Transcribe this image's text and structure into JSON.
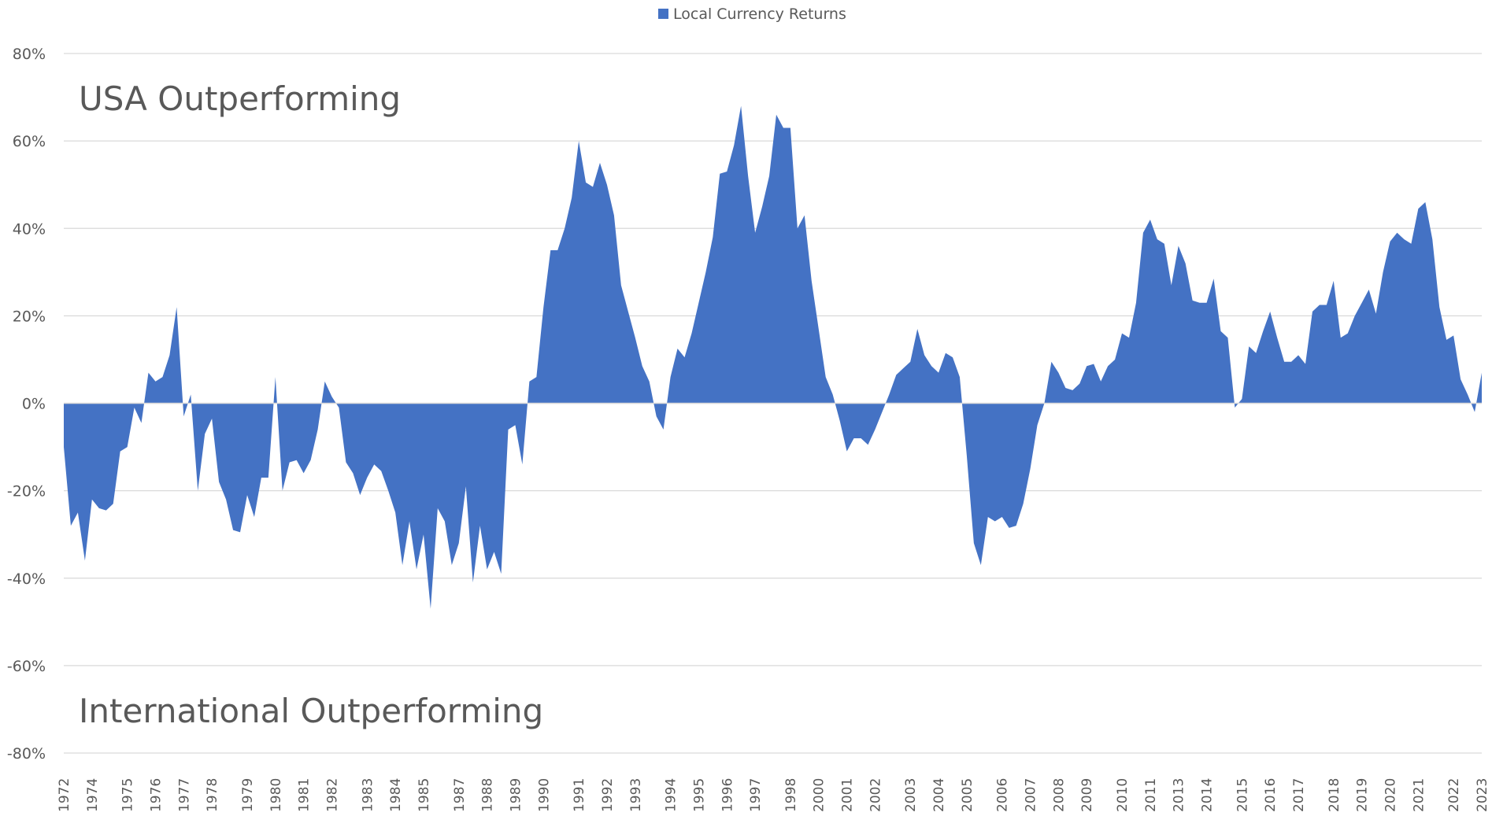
{
  "chart_data": {
    "type": "area",
    "legend": "top",
    "grid": true,
    "annotations": [
      "USA Outperforming",
      "International Outperforming"
    ],
    "categories": [
      "1972",
      null,
      null,
      null,
      "1974",
      null,
      null,
      null,
      null,
      "1975",
      null,
      null,
      null,
      "1976",
      null,
      null,
      null,
      "1977",
      null,
      null,
      null,
      "1978",
      null,
      null,
      null,
      null,
      "1979",
      null,
      null,
      null,
      "1980",
      null,
      null,
      null,
      "1981",
      null,
      null,
      null,
      "1982",
      null,
      null,
      null,
      null,
      "1983",
      null,
      null,
      null,
      "1984",
      null,
      null,
      null,
      "1985",
      null,
      null,
      null,
      null,
      "1987",
      null,
      null,
      null,
      "1988",
      null,
      null,
      null,
      "1989",
      null,
      null,
      null,
      "1990",
      null,
      null,
      null,
      null,
      "1991",
      null,
      null,
      null,
      "1992",
      null,
      null,
      null,
      "1993",
      null,
      null,
      null,
      null,
      "1994",
      null,
      null,
      null,
      "1995",
      null,
      null,
      null,
      "1996",
      null,
      null,
      null,
      "1997",
      null,
      null,
      null,
      null,
      "1998",
      null,
      null,
      null,
      "2000",
      null,
      null,
      null,
      "2001",
      null,
      null,
      null,
      "2002",
      null,
      null,
      null,
      null,
      "2003",
      null,
      null,
      null,
      "2004",
      null,
      null,
      null,
      "2005",
      null,
      null,
      null,
      null,
      "2006",
      null,
      null,
      null,
      "2007",
      null,
      null,
      null,
      "2008",
      null,
      null,
      null,
      "2009",
      null,
      null,
      null,
      null,
      "2010",
      null,
      null,
      null,
      "2011",
      null,
      null,
      null,
      "2013",
      null,
      null,
      null,
      "2014",
      null,
      null,
      null,
      null,
      "2015",
      null,
      null,
      null,
      "2016",
      null,
      null,
      null,
      "2017",
      null,
      null,
      null,
      null,
      "2018",
      null,
      null,
      null,
      "2019",
      null,
      null,
      null,
      "2020",
      null,
      null,
      null,
      "2021",
      null,
      null,
      null,
      null,
      "2022",
      null,
      null,
      null,
      "2023"
    ],
    "series": [
      {
        "name": "Local Currency Returns",
        "color": "#4472c4",
        "values": [
          -10,
          -28,
          -25,
          -36,
          -22,
          -24,
          -24.5,
          -23,
          -11,
          -10,
          -1,
          -4.5,
          7,
          5,
          6,
          11,
          22,
          -3,
          2,
          -20,
          -7,
          -3.5,
          -18,
          -22,
          -29,
          -29.5,
          -21,
          -26,
          -17,
          -17,
          6,
          -20,
          -13.5,
          -13,
          -16,
          -13,
          -6,
          5,
          1.5,
          -1,
          -13.5,
          -16,
          -21,
          -17,
          -14,
          -15.5,
          -20,
          -25,
          -37,
          -27,
          -38,
          -30,
          -47,
          -24,
          -27,
          -37,
          -32,
          -19,
          -41,
          -28,
          -38,
          -34,
          -39,
          -6,
          -5,
          -14,
          5,
          6,
          22,
          35,
          35,
          40,
          47,
          60,
          50.5,
          49.5,
          55,
          50,
          43,
          27,
          21,
          15,
          8.5,
          5,
          -3,
          -6,
          6,
          12.5,
          10.5,
          16,
          23,
          30,
          38,
          52.5,
          53,
          59,
          68,
          52,
          39,
          45,
          52,
          66,
          63,
          63,
          40,
          43,
          28,
          17,
          6,
          2,
          -4,
          -11,
          -8,
          -8,
          -9.5,
          -6,
          -2,
          2,
          6.5,
          8,
          9.5,
          17,
          11,
          8.5,
          7,
          11.5,
          10.5,
          6,
          -12,
          -32,
          -37,
          -26,
          -27,
          -26,
          -28.5,
          -28,
          -23,
          -15,
          -5,
          0,
          9.5,
          7,
          3.5,
          3,
          4.5,
          8.5,
          9,
          5,
          8.5,
          10,
          16,
          15,
          23,
          39,
          42,
          37.5,
          36.5,
          27,
          36,
          32,
          23.5,
          23,
          23,
          28.5,
          16.5,
          15,
          -1,
          1,
          13,
          11.5,
          16.5,
          21,
          15,
          9.5,
          9.5,
          11,
          9,
          21,
          22.5,
          22.5,
          28,
          15,
          16,
          20,
          23,
          26,
          20.5,
          30,
          37,
          39,
          37.5,
          36.5,
          44.5,
          46,
          37.5,
          22,
          14.5,
          15.5,
          5.5,
          2,
          -2,
          7
        ]
      }
    ],
    "ylim": [
      -80,
      80
    ],
    "yticks": [
      {
        "value": -80,
        "label": "-80%"
      },
      {
        "value": -60,
        "label": "-60%"
      },
      {
        "value": -40,
        "label": "-40%"
      },
      {
        "value": -20,
        "label": "-20%"
      },
      {
        "value": 0,
        "label": "0%"
      },
      {
        "value": 20,
        "label": "20%"
      },
      {
        "value": 40,
        "label": "40%"
      },
      {
        "value": 60,
        "label": "60%"
      },
      {
        "value": 80,
        "label": "80%"
      }
    ]
  }
}
